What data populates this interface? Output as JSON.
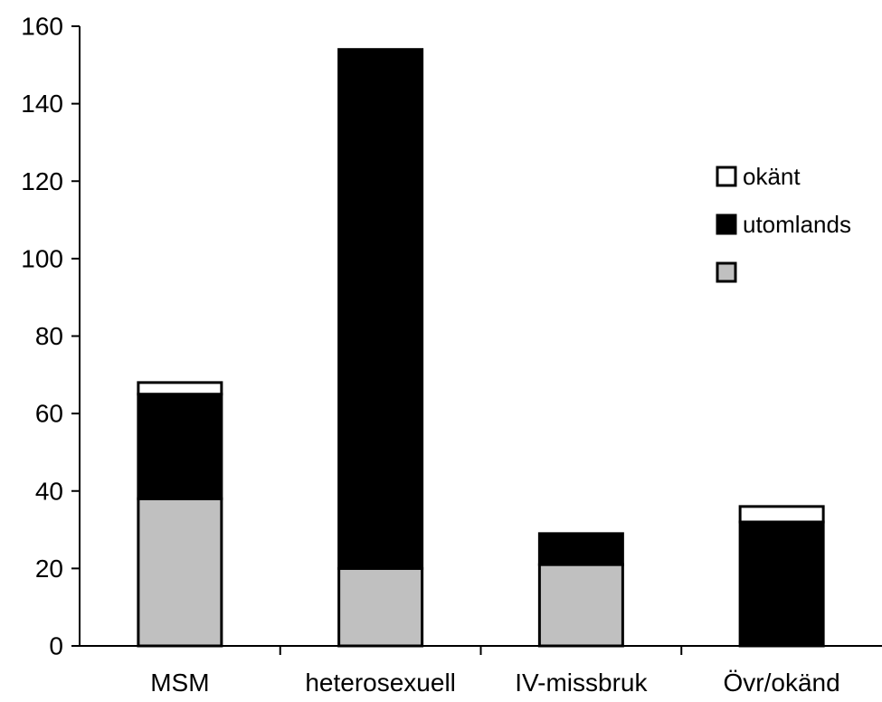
{
  "chart_data": {
    "type": "bar",
    "stacked": true,
    "categories": [
      "MSM",
      "heterosexuell",
      "IV-missbruk",
      "Övr/okänd"
    ],
    "series": [
      {
        "name": "",
        "color": "#c0c0c0",
        "values": [
          38,
          20,
          21,
          0
        ]
      },
      {
        "name": "utomlands",
        "color": "#000000",
        "values": [
          27,
          134,
          8,
          32
        ]
      },
      {
        "name": "okänt",
        "color": "#ffffff",
        "values": [
          3,
          0,
          0,
          4
        ]
      }
    ],
    "yticks": [
      0,
      20,
      40,
      60,
      80,
      100,
      120,
      140,
      160
    ],
    "ylim": [
      0,
      160
    ],
    "title": "",
    "xlabel": "",
    "ylabel": "",
    "legend": {
      "position": "right",
      "order": [
        "okänt",
        "utomlands",
        ""
      ]
    },
    "grid": false
  }
}
